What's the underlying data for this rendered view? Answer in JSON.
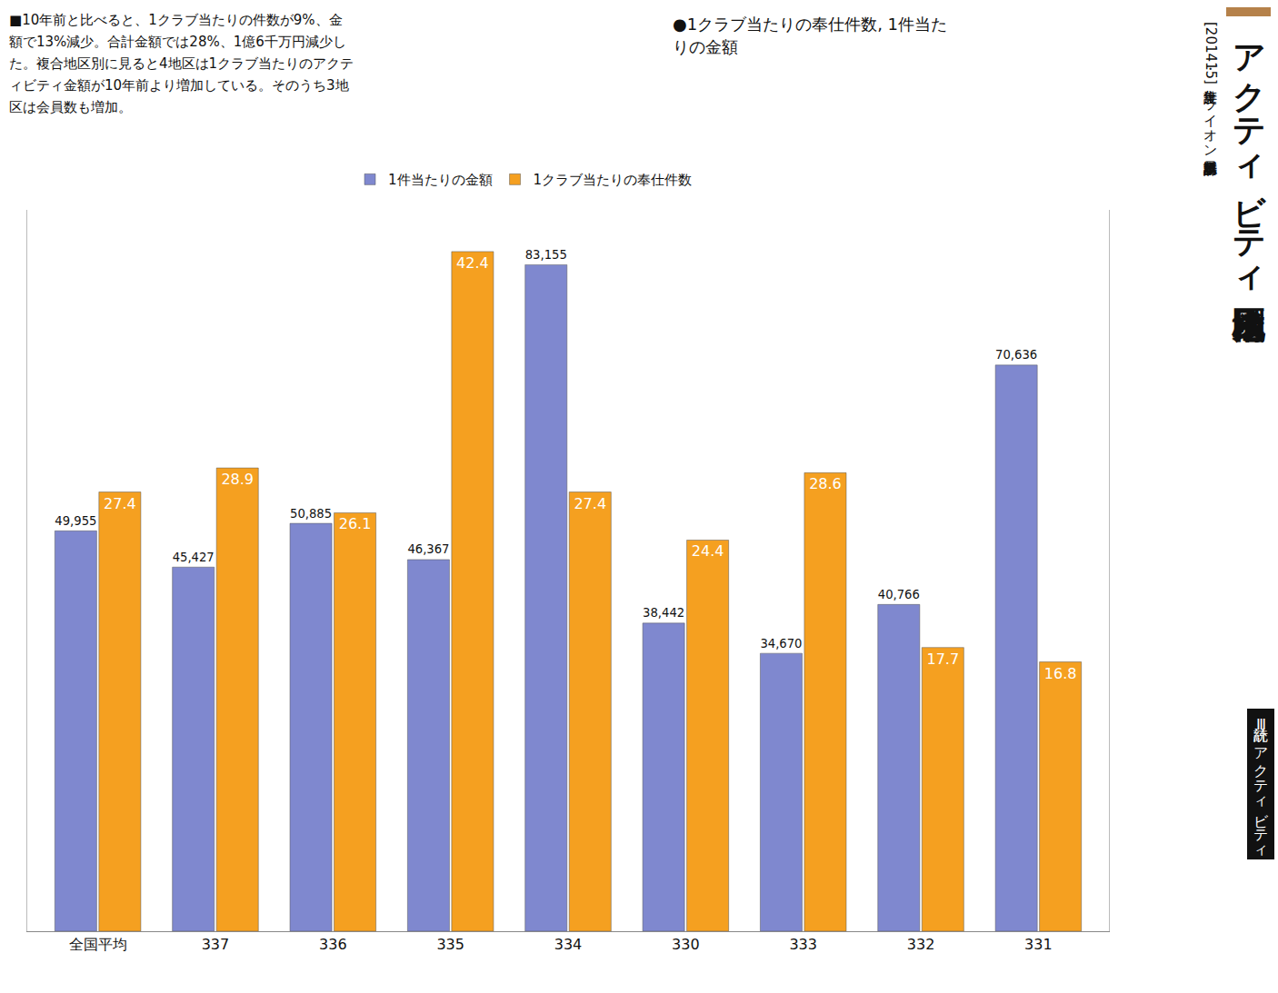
{
  "chart_data": {
    "type": "bar",
    "title": "アクティビティ地区別構成比",
    "subtitle": "[2014・15年度集計] ライオン誌日本語版事務所集計",
    "annotations": [
      "■10年前と比べると、1クラブ当たりの件数が9%、金額で13%減少。合計金額では28%、1億6千万円減少した。複合地区別に見ると4地区は1クラブ当たりのアクティビティ金額が10年前より増加している。そのうち3地区は会員数も増加。",
      "●1クラブ当たりの奉仕件数, 1件当たりの金額",
      "統計Ⅲ アクティビティ"
    ],
    "categories": [
      "全国平均",
      "337",
      "336",
      "335",
      "334",
      "330",
      "333",
      "332",
      "331"
    ],
    "series": [
      {
        "name": "1件当たりの金額",
        "color": "#7f88cf",
        "axis": "y",
        "values": [
          49955,
          45427,
          50885,
          46367,
          83155,
          38442,
          34670,
          40766,
          70636
        ],
        "value_labels": [
          "49,955",
          "45,427",
          "50,885",
          "46,367",
          "83,155",
          "38,442",
          "34,670",
          "40,766",
          "70,636"
        ]
      },
      {
        "name": "1クラブ当たりの奉仕件数",
        "color": "#f5a020",
        "axis": "y2",
        "values": [
          27.4,
          28.9,
          26.1,
          42.4,
          27.4,
          24.4,
          28.6,
          17.7,
          16.8
        ]
      }
    ],
    "ylim": [
      0,
      90000
    ],
    "y2lim": [
      0,
      45
    ],
    "grid": false,
    "legend": "top",
    "data_labels": true,
    "tick_labels": "x"
  }
}
